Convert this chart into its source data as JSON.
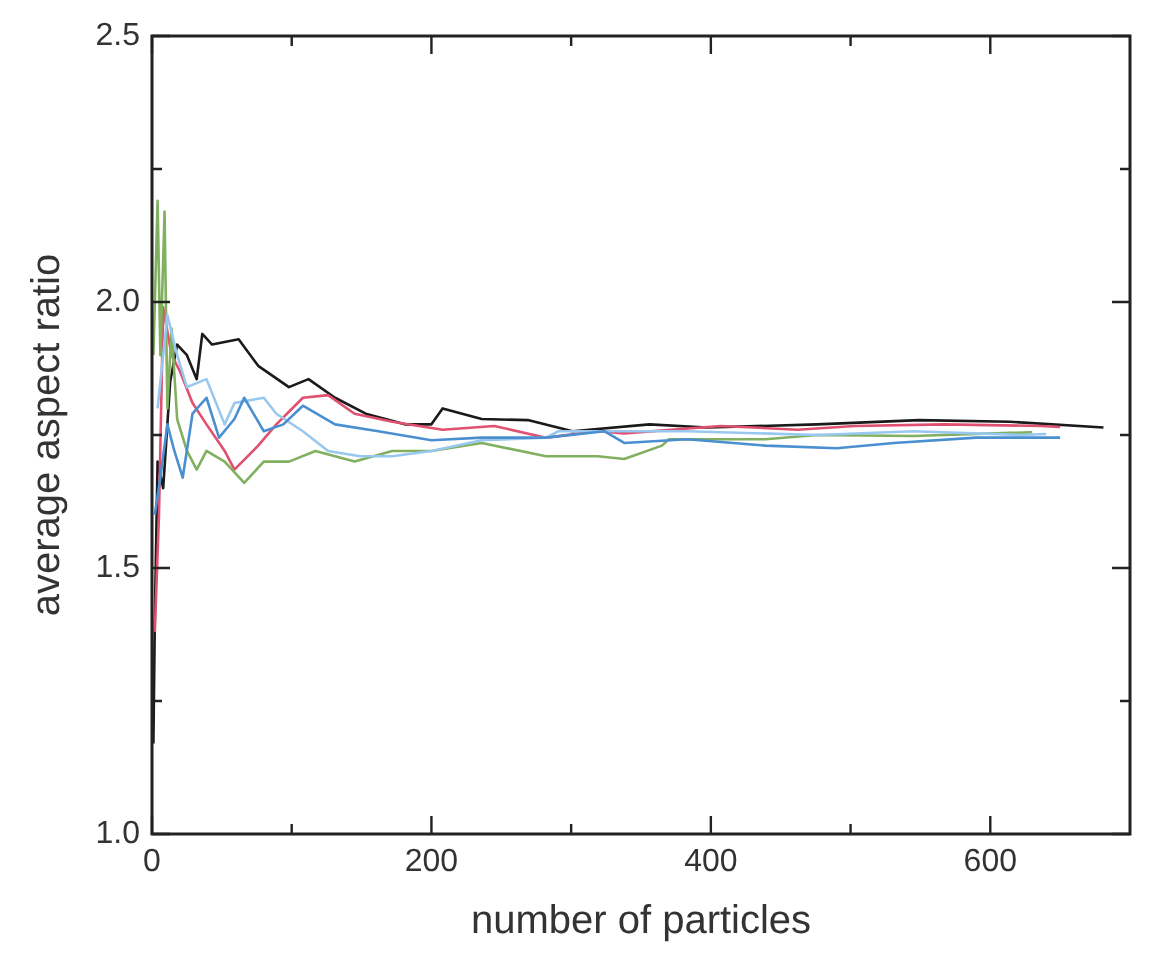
{
  "chart_data": {
    "type": "line",
    "xlabel": "number of particles",
    "ylabel": "average aspect ratio",
    "xlim": [
      0,
      700
    ],
    "ylim": [
      1.0,
      2.5
    ],
    "xticks": [
      0,
      {
        "value": 100,
        "label": null
      },
      200,
      {
        "value": 300,
        "label": null
      },
      400,
      {
        "value": 500,
        "label": null
      },
      600
    ],
    "yticks": [
      {
        "value": 1.0,
        "label": "1.0"
      },
      {
        "value": 1.25,
        "label": null
      },
      1.5,
      {
        "value": 1.75,
        "label": null
      },
      {
        "value": 2.0,
        "label": "2.0"
      },
      {
        "value": 2.25,
        "label": null
      },
      2.5
    ],
    "grid": false,
    "legend": false,
    "marker": "none",
    "line_style": "solid",
    "series": [
      {
        "color": "#4a8fd0",
        "x": [
          2,
          6,
          11,
          16,
          22,
          29,
          39,
          48,
          59,
          66,
          80,
          94,
          108,
          131,
          162,
          200,
          236,
          282,
          324,
          338,
          383,
          439,
          490,
          531,
          590,
          650
        ],
        "values": [
          1.6,
          1.67,
          1.77,
          1.72,
          1.67,
          1.79,
          1.82,
          1.745,
          1.78,
          1.82,
          1.757,
          1.77,
          1.805,
          1.77,
          1.757,
          1.74,
          1.745,
          1.745,
          1.757,
          1.735,
          1.742,
          1.73,
          1.725,
          1.735,
          1.745,
          1.745
        ]
      },
      {
        "color": "#98c8f0",
        "x": [
          4,
          11,
          18,
          25,
          39,
          52,
          59,
          80,
          89,
          108,
          126,
          149,
          172,
          200,
          236,
          282,
          291,
          383,
          476,
          545,
          622,
          640
        ],
        "values": [
          1.8,
          1.975,
          1.9,
          1.84,
          1.855,
          1.77,
          1.81,
          1.82,
          1.79,
          1.757,
          1.72,
          1.71,
          1.71,
          1.72,
          1.74,
          1.745,
          1.757,
          1.757,
          1.75,
          1.757,
          1.75,
          1.752
        ]
      },
      {
        "color": "#80b060",
        "x": [
          1,
          4,
          6,
          9,
          11,
          14,
          18,
          25,
          32,
          39,
          52,
          66,
          80,
          98,
          117,
          145,
          172,
          200,
          236,
          282,
          319,
          338,
          365,
          370,
          439,
          476,
          545,
          614,
          630
        ],
        "values": [
          1.9,
          2.19,
          1.9,
          2.17,
          1.8,
          1.95,
          1.78,
          1.72,
          1.685,
          1.72,
          1.7,
          1.66,
          1.7,
          1.7,
          1.72,
          1.7,
          1.72,
          1.72,
          1.735,
          1.71,
          1.71,
          1.705,
          1.73,
          1.742,
          1.742,
          1.75,
          1.748,
          1.754,
          1.755
        ]
      },
      {
        "color": "#e05070",
        "x": [
          2,
          5,
          8,
          14,
          20,
          29,
          39,
          52,
          59,
          76,
          89,
          108,
          126,
          145,
          172,
          208,
          245,
          282,
          319,
          338,
          407,
          462,
          503,
          567,
          636,
          650
        ],
        "values": [
          1.38,
          1.6,
          1.99,
          1.9,
          1.87,
          1.81,
          1.77,
          1.72,
          1.685,
          1.73,
          1.77,
          1.82,
          1.825,
          1.79,
          1.775,
          1.76,
          1.767,
          1.745,
          1.757,
          1.753,
          1.767,
          1.76,
          1.767,
          1.77,
          1.767,
          1.765
        ]
      },
      {
        "color": "#1a1a1a",
        "x": [
          1,
          2,
          4,
          8,
          13,
          18,
          25,
          32,
          36,
          43,
          62,
          76,
          98,
          112,
          131,
          153,
          181,
          200,
          208,
          236,
          269,
          301,
          356,
          397,
          476,
          549,
          614,
          681
        ],
        "values": [
          1.17,
          1.4,
          1.7,
          1.65,
          1.85,
          1.92,
          1.9,
          1.855,
          1.94,
          1.92,
          1.93,
          1.88,
          1.84,
          1.855,
          1.82,
          1.79,
          1.77,
          1.77,
          1.8,
          1.78,
          1.778,
          1.757,
          1.77,
          1.764,
          1.77,
          1.778,
          1.775,
          1.764
        ]
      }
    ]
  }
}
